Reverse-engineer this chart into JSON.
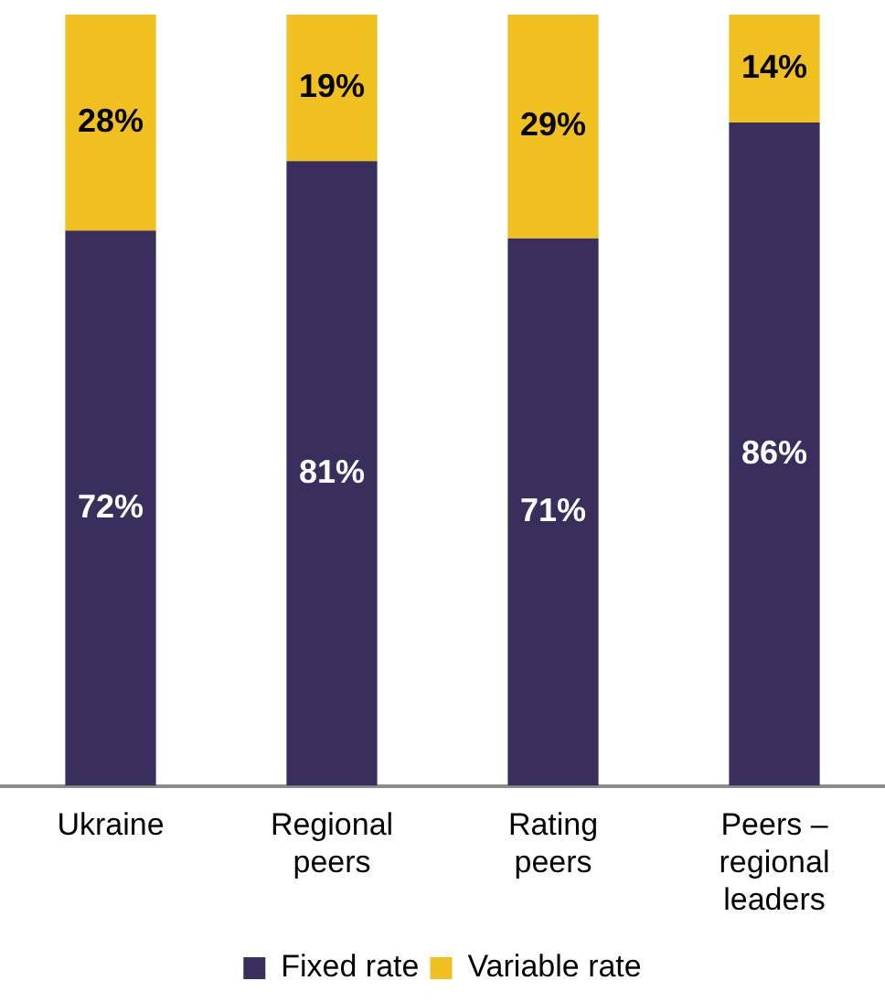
{
  "chart_data": {
    "type": "bar",
    "stacked": true,
    "categories": [
      "Ukraine",
      "Regional peers",
      "Rating peers",
      "Peers – regional leaders"
    ],
    "series": [
      {
        "name": "Fixed rate",
        "color": "#3a2e5c",
        "values": [
          72,
          81,
          71,
          86
        ],
        "value_labels": [
          "72%",
          "81%",
          "71%",
          "86%"
        ]
      },
      {
        "name": "Variable rate",
        "color": "#f0c020",
        "values": [
          28,
          19,
          29,
          14
        ],
        "value_labels": [
          "28%",
          "19%",
          "29%",
          "14%"
        ]
      }
    ],
    "tick_labels": "x",
    "legend": "bottom",
    "grid": false
  }
}
